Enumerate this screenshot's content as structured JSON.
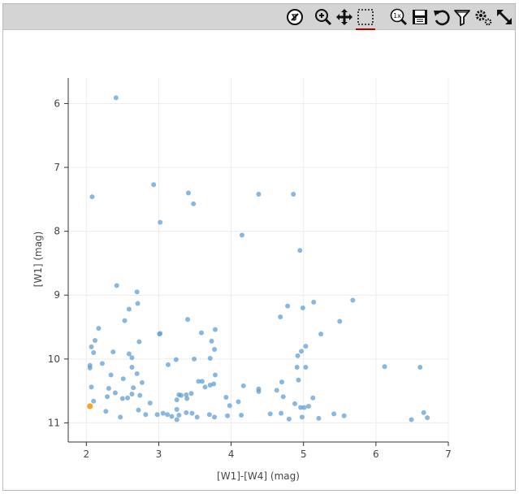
{
  "toolbar": {
    "icons": [
      {
        "name": "clear-selection-icon",
        "label": "clear selection"
      },
      {
        "name": "zoom-in-icon",
        "label": "zoom in"
      },
      {
        "name": "pan-icon",
        "label": "pan"
      },
      {
        "name": "box-select-icon",
        "label": "box select"
      },
      {
        "name": "zoom-1x-icon",
        "label": "1x"
      },
      {
        "name": "save-icon",
        "label": "save"
      },
      {
        "name": "reset-icon",
        "label": "reset"
      },
      {
        "name": "filter-icon",
        "label": "filter"
      },
      {
        "name": "settings-icon",
        "label": "settings"
      },
      {
        "name": "expand-icon",
        "label": "expand"
      }
    ],
    "active_underline_color": "#b30000"
  },
  "chart_data": {
    "type": "scatter",
    "xlabel": "[W1]-[W4] (mag)",
    "ylabel": "[W1] (mag)",
    "xlim": [
      1.75,
      7.0
    ],
    "ylim": [
      11.3,
      5.6
    ],
    "y_inverted": true,
    "xticks": [
      "2",
      "3",
      "4",
      "5",
      "6",
      "7"
    ],
    "xtick_values": [
      2,
      3,
      4,
      5,
      6,
      7
    ],
    "yticks": [
      "6",
      "7",
      "8",
      "9",
      "10",
      "11"
    ],
    "ytick_values": [
      6,
      7,
      8,
      9,
      10,
      11
    ],
    "grid": true,
    "point_color": "#5b9bd0",
    "highlight_color": "#f5a623",
    "series": [
      {
        "points": [
          [
            2.41,
            5.91
          ],
          [
            2.08,
            7.46
          ],
          [
            2.93,
            7.27
          ],
          [
            3.41,
            7.4
          ],
          [
            3.48,
            7.57
          ],
          [
            3.02,
            7.86
          ],
          [
            4.38,
            7.42
          ],
          [
            4.86,
            7.42
          ],
          [
            4.15,
            8.06
          ],
          [
            4.95,
            8.3
          ],
          [
            2.42,
            8.85
          ],
          [
            2.7,
            8.95
          ],
          [
            2.71,
            9.13
          ],
          [
            2.59,
            9.22
          ],
          [
            2.53,
            9.4
          ],
          [
            2.17,
            9.52
          ],
          [
            2.12,
            9.71
          ],
          [
            2.07,
            9.81
          ],
          [
            2.1,
            9.9
          ],
          [
            2.37,
            9.89
          ],
          [
            2.59,
            9.92
          ],
          [
            2.63,
            9.98
          ],
          [
            2.73,
            9.73
          ],
          [
            3.02,
            9.6
          ],
          [
            3.01,
            9.61
          ],
          [
            3.4,
            9.38
          ],
          [
            3.59,
            9.59
          ],
          [
            3.78,
            9.54
          ],
          [
            3.73,
            9.72
          ],
          [
            3.77,
            9.85
          ],
          [
            3.71,
            9.99
          ],
          [
            3.49,
            10.0
          ],
          [
            3.24,
            10.01
          ],
          [
            3.13,
            10.09
          ],
          [
            2.05,
            10.1
          ],
          [
            2.05,
            10.14
          ],
          [
            2.22,
            10.07
          ],
          [
            2.34,
            10.25
          ],
          [
            2.51,
            10.31
          ],
          [
            2.63,
            10.13
          ],
          [
            2.7,
            10.23
          ],
          [
            2.77,
            10.37
          ],
          [
            2.65,
            10.45
          ],
          [
            2.63,
            10.55
          ],
          [
            2.57,
            10.61
          ],
          [
            2.74,
            10.57
          ],
          [
            2.88,
            10.69
          ],
          [
            2.72,
            10.8
          ],
          [
            2.5,
            10.62
          ],
          [
            2.4,
            10.53
          ],
          [
            2.31,
            10.46
          ],
          [
            2.29,
            10.59
          ],
          [
            2.07,
            10.44
          ],
          [
            2.1,
            10.66
          ],
          [
            2.27,
            10.82
          ],
          [
            2.47,
            10.91
          ],
          [
            2.82,
            10.87
          ],
          [
            2.98,
            10.87
          ],
          [
            3.06,
            10.85
          ],
          [
            3.12,
            10.87
          ],
          [
            3.18,
            10.9
          ],
          [
            3.28,
            10.88
          ],
          [
            3.38,
            10.84
          ],
          [
            3.46,
            10.85
          ],
          [
            3.53,
            10.91
          ],
          [
            3.25,
            10.95
          ],
          [
            3.25,
            10.79
          ],
          [
            3.25,
            10.64
          ],
          [
            3.28,
            10.56
          ],
          [
            3.31,
            10.57
          ],
          [
            3.38,
            10.56
          ],
          [
            3.39,
            10.62
          ],
          [
            3.45,
            10.54
          ],
          [
            3.55,
            10.35
          ],
          [
            3.6,
            10.35
          ],
          [
            3.64,
            10.44
          ],
          [
            3.71,
            10.41
          ],
          [
            3.76,
            10.39
          ],
          [
            3.78,
            10.25
          ],
          [
            3.7,
            10.87
          ],
          [
            3.77,
            10.91
          ],
          [
            3.93,
            10.6
          ],
          [
            3.95,
            10.89
          ],
          [
            3.98,
            10.73
          ],
          [
            4.1,
            10.67
          ],
          [
            4.14,
            10.88
          ],
          [
            4.17,
            10.42
          ],
          [
            4.38,
            10.47
          ],
          [
            4.38,
            10.51
          ],
          [
            4.63,
            10.49
          ],
          [
            4.7,
            10.36
          ],
          [
            4.72,
            10.59
          ],
          [
            4.54,
            10.86
          ],
          [
            4.69,
            10.85
          ],
          [
            4.8,
            10.94
          ],
          [
            4.88,
            10.7
          ],
          [
            4.93,
            10.33
          ],
          [
            4.91,
            10.13
          ],
          [
            4.92,
            9.95
          ],
          [
            4.97,
            9.88
          ],
          [
            4.99,
            9.2
          ],
          [
            4.78,
            9.17
          ],
          [
            4.68,
            9.34
          ],
          [
            5.03,
            9.8
          ],
          [
            5.03,
            10.13
          ],
          [
            5.14,
            9.11
          ],
          [
            5.24,
            9.61
          ],
          [
            5.5,
            9.41
          ],
          [
            5.68,
            9.08
          ],
          [
            4.96,
            10.76
          ],
          [
            5.01,
            10.76
          ],
          [
            5.07,
            10.74
          ],
          [
            5.13,
            10.61
          ],
          [
            4.98,
            10.91
          ],
          [
            5.21,
            10.93
          ],
          [
            5.42,
            10.86
          ],
          [
            5.56,
            10.89
          ],
          [
            6.12,
            10.12
          ],
          [
            6.61,
            10.13
          ],
          [
            6.49,
            10.95
          ],
          [
            6.66,
            10.84
          ],
          [
            6.71,
            10.92
          ]
        ]
      }
    ],
    "highlight_points": [
      [
        2.05,
        10.74
      ]
    ]
  }
}
